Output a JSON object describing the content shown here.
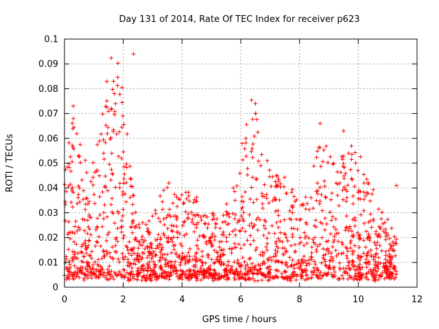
{
  "chart_data": {
    "type": "scatter",
    "title": "Day 131 of 2014, Rate Of TEC Index for receiver p623",
    "xlabel": "GPS time / hours",
    "ylabel": "ROTI / TECUs",
    "xlim": [
      0,
      12
    ],
    "ylim": [
      0,
      0.1
    ],
    "xticks": [
      0,
      2,
      4,
      6,
      8,
      10,
      12
    ],
    "yticks": [
      0,
      0.01,
      0.02,
      0.03,
      0.04,
      0.05,
      0.06,
      0.07,
      0.08,
      0.09,
      0.1
    ],
    "xtick_labels": [
      "0",
      "2",
      "4",
      "6",
      "8",
      "10",
      "12"
    ],
    "ytick_labels": [
      "0",
      "0.01",
      "0.02",
      "0.03",
      "0.04",
      "0.05",
      "0.06",
      "0.07",
      "0.08",
      "0.09",
      "0.1"
    ],
    "grid": true,
    "marker": "+",
    "marker_color": "#ff0000",
    "x_data_range": [
      0.0,
      11.3
    ],
    "notable_points": [
      {
        "x": 0.3,
        "y": 0.073
      },
      {
        "x": 0.3,
        "y": 0.068
      },
      {
        "x": 1.6,
        "y": 0.072
      },
      {
        "x": 2.35,
        "y": 0.094
      },
      {
        "x": 6.5,
        "y": 0.074
      },
      {
        "x": 6.5,
        "y": 0.07
      },
      {
        "x": 8.7,
        "y": 0.066
      },
      {
        "x": 9.5,
        "y": 0.063
      },
      {
        "x": 11.3,
        "y": 0.041
      }
    ]
  }
}
